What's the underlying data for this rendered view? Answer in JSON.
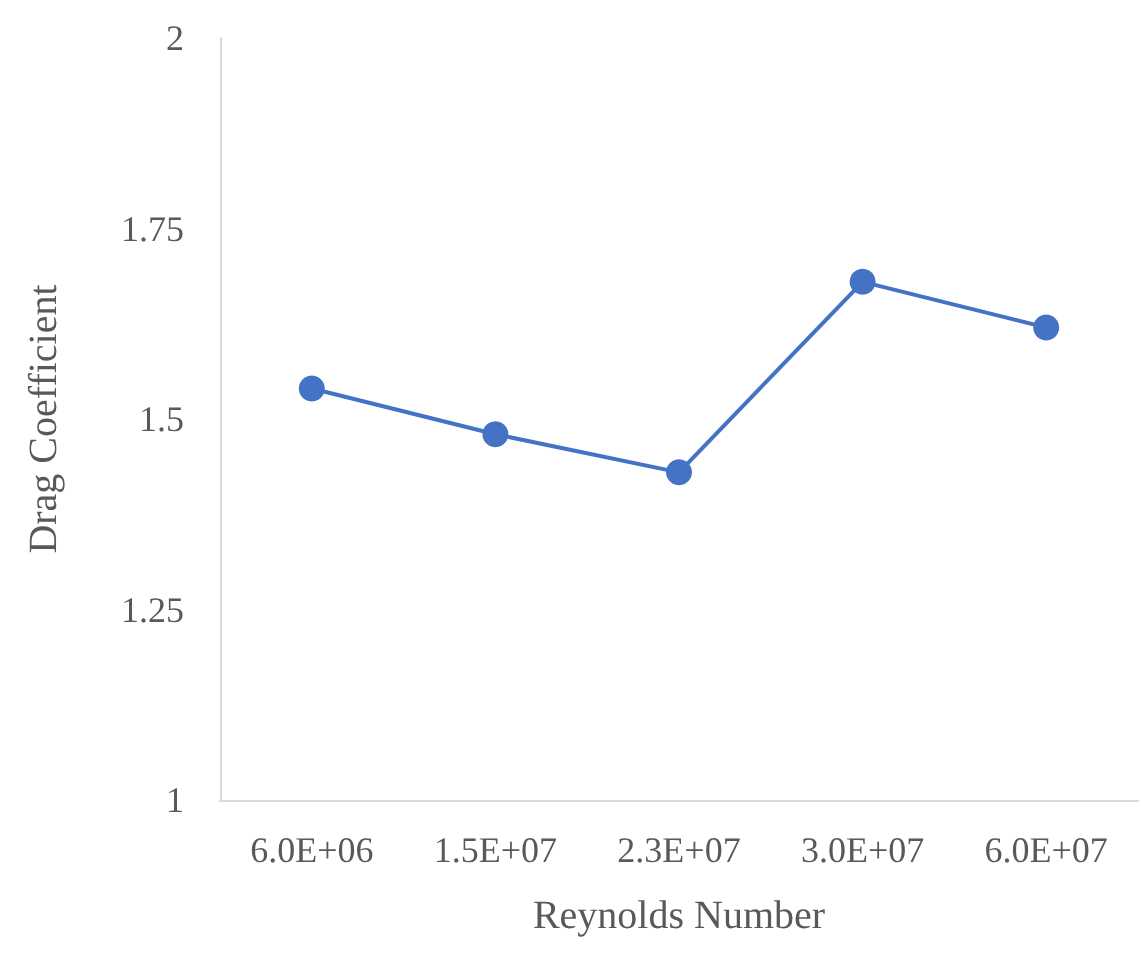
{
  "chart_data": {
    "type": "line",
    "xlabel": "Reynolds Number",
    "ylabel": "Drag Coefficient",
    "categories": [
      "6.0E+06",
      "1.5E+07",
      "2.3E+07",
      "3.0E+07",
      "6.0E+07"
    ],
    "series": [
      {
        "color": "#4472c4",
        "values": [
          1.54,
          1.48,
          1.43,
          1.68,
          1.62
        ]
      }
    ],
    "ylim": [
      1,
      2
    ],
    "yticks": [
      1,
      1.25,
      1.5,
      1.75,
      2
    ],
    "grid": false,
    "marker": "circle",
    "line_style": "solid"
  }
}
